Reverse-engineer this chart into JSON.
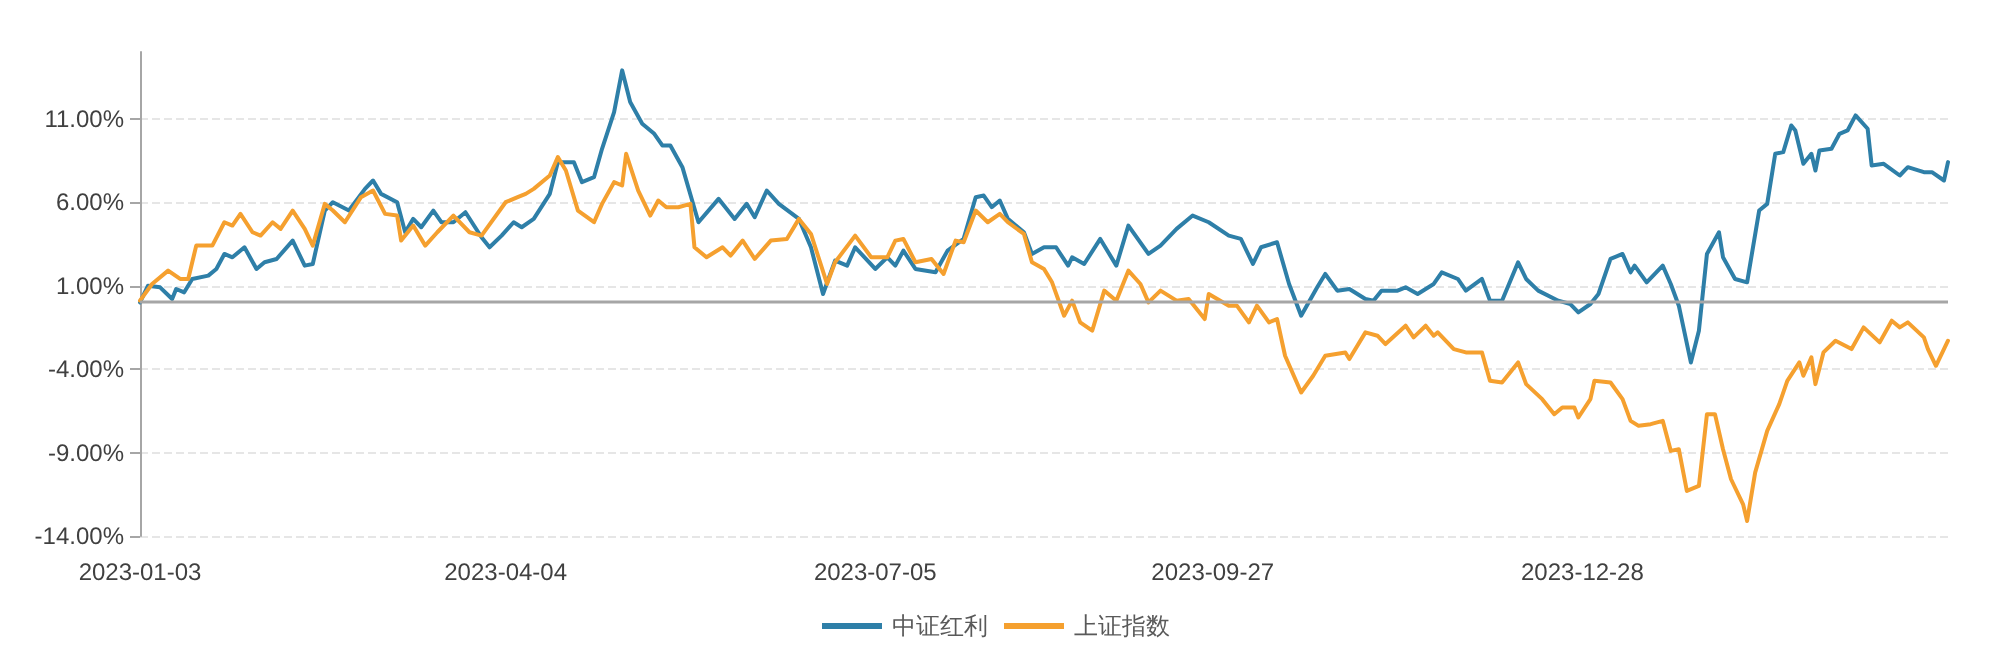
{
  "chart_data": {
    "type": "line",
    "legend": "bottom",
    "grid": "y",
    "marker": "none",
    "line_style": "solid",
    "xlim": [
      "2023-01-03",
      "2024-03-28"
    ],
    "xticks": [
      "2023-01-03",
      "2023-04-04",
      "2023-07-05",
      "2023-09-27",
      "2023-12-28"
    ],
    "ylim": [
      -14,
      15
    ],
    "yticks": [
      {
        "value": -14,
        "label": "-14.00%"
      },
      {
        "value": -9,
        "label": "-9.00%"
      },
      {
        "value": -4,
        "label": "-4.00%"
      },
      {
        "value": 1,
        "label": "1.00%"
      },
      {
        "value": 6,
        "label": "6.00%"
      },
      {
        "value": 11,
        "label": "11.00%"
      }
    ],
    "ref_lines": [
      {
        "axis": "y",
        "value": 0,
        "color": "#a6a6a6"
      }
    ],
    "series": [
      {
        "name": "中证红利",
        "color": "#2e7fa8",
        "x": [
          "2023-01-03",
          "2023-01-05",
          "2023-01-08",
          "2023-01-11",
          "2023-01-12",
          "2023-01-14",
          "2023-01-16",
          "2023-01-20",
          "2023-01-22",
          "2023-01-24",
          "2023-01-26",
          "2023-01-29",
          "2023-02-01",
          "2023-02-03",
          "2023-02-06",
          "2023-02-10",
          "2023-02-13",
          "2023-02-15",
          "2023-02-18",
          "2023-02-20",
          "2023-02-24",
          "2023-02-28",
          "2023-03-02",
          "2023-03-04",
          "2023-03-08",
          "2023-03-10",
          "2023-03-12",
          "2023-03-14",
          "2023-03-17",
          "2023-03-19",
          "2023-03-22",
          "2023-03-25",
          "2023-03-29",
          "2023-03-31",
          "2023-04-03",
          "2023-04-06",
          "2023-04-08",
          "2023-04-11",
          "2023-04-15",
          "2023-04-17",
          "2023-04-21",
          "2023-04-23",
          "2023-04-26",
          "2023-04-28",
          "2023-05-01",
          "2023-05-03",
          "2023-05-05",
          "2023-05-08",
          "2023-05-11",
          "2023-05-13",
          "2023-05-15",
          "2023-05-18",
          "2023-05-22",
          "2023-05-27",
          "2023-05-31",
          "2023-06-03",
          "2023-06-05",
          "2023-06-08",
          "2023-06-11",
          "2023-06-16",
          "2023-06-19",
          "2023-06-22",
          "2023-06-25",
          "2023-06-28",
          "2023-06-30",
          "2023-07-05",
          "2023-07-08",
          "2023-07-10",
          "2023-07-12",
          "2023-07-15",
          "2023-07-20",
          "2023-07-23",
          "2023-07-27",
          "2023-07-30",
          "2023-08-01",
          "2023-08-03",
          "2023-08-05",
          "2023-08-07",
          "2023-08-11",
          "2023-08-13",
          "2023-08-16",
          "2023-08-19",
          "2023-08-22",
          "2023-08-23",
          "2023-08-26",
          "2023-08-30",
          "2023-09-03",
          "2023-09-06",
          "2023-09-11",
          "2023-09-14",
          "2023-09-18",
          "2023-09-22",
          "2023-09-26",
          "2023-10-01",
          "2023-10-04",
          "2023-10-07",
          "2023-10-09",
          "2023-10-13",
          "2023-10-16",
          "2023-10-19",
          "2023-10-23",
          "2023-10-25",
          "2023-10-28",
          "2023-10-31",
          "2023-11-04",
          "2023-11-06",
          "2023-11-08",
          "2023-11-12",
          "2023-11-14",
          "2023-11-17",
          "2023-11-21",
          "2023-11-23",
          "2023-11-27",
          "2023-11-29",
          "2023-12-03",
          "2023-12-05",
          "2023-12-08",
          "2023-12-12",
          "2023-12-14",
          "2023-12-17",
          "2023-12-22",
          "2023-12-25",
          "2023-12-27",
          "2023-12-30",
          "2024-01-01",
          "2024-01-04",
          "2024-01-07",
          "2024-01-09",
          "2024-01-10",
          "2024-01-13",
          "2024-01-17",
          "2024-01-19",
          "2024-01-21",
          "2024-01-24",
          "2024-01-26",
          "2024-01-28",
          "2024-01-31",
          "2024-02-01",
          "2024-02-04",
          "2024-02-07",
          "2024-02-10",
          "2024-02-12",
          "2024-02-14",
          "2024-02-16",
          "2024-02-18",
          "2024-02-19",
          "2024-02-21",
          "2024-02-23",
          "2024-02-24",
          "2024-02-25",
          "2024-02-28",
          "2024-03-01",
          "2024-03-03",
          "2024-03-05",
          "2024-03-08",
          "2024-03-09",
          "2024-03-12",
          "2024-03-16",
          "2024-03-18",
          "2024-03-22",
          "2024-03-24",
          "2024-03-27",
          "2024-03-28"
        ],
        "values": [
          0,
          1.0,
          0.9,
          0.2,
          0.8,
          0.6,
          1.4,
          1.6,
          2.0,
          2.9,
          2.7,
          3.3,
          2.0,
          2.4,
          2.6,
          3.7,
          2.2,
          2.3,
          5.5,
          6.0,
          5.5,
          6.8,
          7.3,
          6.5,
          6.0,
          4.2,
          5.0,
          4.5,
          5.5,
          4.8,
          4.8,
          5.4,
          3.9,
          3.3,
          4.0,
          4.8,
          4.5,
          5.0,
          6.5,
          8.4,
          8.4,
          7.2,
          7.5,
          9.2,
          11.4,
          13.9,
          12.0,
          10.7,
          10.1,
          9.4,
          9.4,
          8.1,
          4.8,
          6.2,
          5.0,
          5.9,
          5.1,
          6.7,
          5.9,
          5.0,
          3.3,
          0.5,
          2.5,
          2.2,
          3.3,
          2.0,
          2.7,
          2.2,
          3.1,
          2.0,
          1.8,
          3.1,
          3.8,
          6.3,
          6.4,
          5.7,
          6.1,
          5.0,
          4.2,
          2.9,
          3.3,
          3.3,
          2.2,
          2.7,
          2.3,
          3.8,
          2.2,
          4.6,
          2.9,
          3.4,
          4.4,
          5.2,
          4.8,
          4.0,
          3.8,
          2.3,
          3.3,
          3.6,
          1.1,
          -0.8,
          0.9,
          1.7,
          0.7,
          0.8,
          0.2,
          0.1,
          0.7,
          0.7,
          0.9,
          0.5,
          1.1,
          1.8,
          1.4,
          0.7,
          1.4,
          0.1,
          0.1,
          2.4,
          1.4,
          0.7,
          0.1,
          -0.1,
          -0.6,
          -0.1,
          0.5,
          2.6,
          2.9,
          1.8,
          2.2,
          1.2,
          2.2,
          1.1,
          -0.2,
          -3.6,
          -1.7,
          2.9,
          4.2,
          2.7,
          1.4,
          1.2,
          5.5,
          5.9,
          8.9,
          9.0,
          10.6,
          10.3,
          8.3,
          8.9,
          7.9,
          9.1,
          9.2,
          10.1,
          10.3,
          11.2,
          10.4,
          8.2,
          8.3,
          7.6,
          8.1,
          7.8,
          7.8,
          7.3,
          8.4
        ]
      },
      {
        "name": "上证指数",
        "color": "#f5a02f",
        "x": [
          "2023-01-03",
          "2023-01-06",
          "2023-01-10",
          "2023-01-13",
          "2023-01-15",
          "2023-01-17",
          "2023-01-21",
          "2023-01-24",
          "2023-01-26",
          "2023-01-28",
          "2023-01-31",
          "2023-02-02",
          "2023-02-05",
          "2023-02-07",
          "2023-02-10",
          "2023-02-13",
          "2023-02-15",
          "2023-02-18",
          "2023-02-20",
          "2023-02-23",
          "2023-02-27",
          "2023-03-02",
          "2023-03-05",
          "2023-03-08",
          "2023-03-09",
          "2023-03-12",
          "2023-03-15",
          "2023-03-18",
          "2023-03-22",
          "2023-03-26",
          "2023-03-29",
          "2023-04-04",
          "2023-04-07",
          "2023-04-09",
          "2023-04-11",
          "2023-04-15",
          "2023-04-17",
          "2023-04-19",
          "2023-04-22",
          "2023-04-26",
          "2023-04-28",
          "2023-05-01",
          "2023-05-03",
          "2023-05-04",
          "2023-05-07",
          "2023-05-10",
          "2023-05-12",
          "2023-05-14",
          "2023-05-17",
          "2023-05-20",
          "2023-05-21",
          "2023-05-24",
          "2023-05-28",
          "2023-05-30",
          "2023-06-02",
          "2023-06-05",
          "2023-06-09",
          "2023-06-13",
          "2023-06-16",
          "2023-06-19",
          "2023-06-23",
          "2023-06-25",
          "2023-06-30",
          "2023-07-04",
          "2023-07-08",
          "2023-07-10",
          "2023-07-12",
          "2023-07-15",
          "2023-07-19",
          "2023-07-22",
          "2023-07-25",
          "2023-07-27",
          "2023-07-30",
          "2023-08-02",
          "2023-08-05",
          "2023-08-07",
          "2023-08-11",
          "2023-08-13",
          "2023-08-16",
          "2023-08-18",
          "2023-08-21",
          "2023-08-23",
          "2023-08-25",
          "2023-08-28",
          "2023-08-31",
          "2023-09-03",
          "2023-09-06",
          "2023-09-09",
          "2023-09-11",
          "2023-09-14",
          "2023-09-18",
          "2023-09-21",
          "2023-09-25",
          "2023-09-26",
          "2023-10-01",
          "2023-10-03",
          "2023-10-06",
          "2023-10-08",
          "2023-10-11",
          "2023-10-13",
          "2023-10-15",
          "2023-10-19",
          "2023-10-22",
          "2023-10-25",
          "2023-10-30",
          "2023-10-31",
          "2023-11-04",
          "2023-11-07",
          "2023-11-09",
          "2023-11-14",
          "2023-11-16",
          "2023-11-19",
          "2023-11-21",
          "2023-11-22",
          "2023-11-26",
          "2023-11-29",
          "2023-12-03",
          "2023-12-05",
          "2023-12-08",
          "2023-12-12",
          "2023-12-14",
          "2023-12-18",
          "2023-12-21",
          "2023-12-23",
          "2023-12-26",
          "2023-12-27",
          "2023-12-30",
          "2023-12-31",
          "2024-01-04",
          "2024-01-07",
          "2024-01-09",
          "2024-01-11",
          "2024-01-14",
          "2024-01-17",
          "2024-01-19",
          "2024-01-21",
          "2024-01-23",
          "2024-01-26",
          "2024-01-28",
          "2024-01-30",
          "2024-02-01",
          "2024-02-03",
          "2024-02-06",
          "2024-02-07",
          "2024-02-09",
          "2024-02-12",
          "2024-02-15",
          "2024-02-17",
          "2024-02-20",
          "2024-02-21",
          "2024-02-23",
          "2024-02-24",
          "2024-02-26",
          "2024-02-29",
          "2024-03-04",
          "2024-03-07",
          "2024-03-11",
          "2024-03-14",
          "2024-03-16",
          "2024-03-18",
          "2024-03-22",
          "2024-03-23",
          "2024-03-25",
          "2024-03-28"
        ],
        "values": [
          0.1,
          1.1,
          1.9,
          1.4,
          1.4,
          3.4,
          3.4,
          4.8,
          4.6,
          5.3,
          4.2,
          4.0,
          4.8,
          4.4,
          5.5,
          4.4,
          3.4,
          5.9,
          5.5,
          4.8,
          6.3,
          6.7,
          5.3,
          5.2,
          3.7,
          4.6,
          3.4,
          4.2,
          5.2,
          4.2,
          4.0,
          6.0,
          6.3,
          6.5,
          6.8,
          7.6,
          8.7,
          7.9,
          5.5,
          4.8,
          5.9,
          7.2,
          7.0,
          8.9,
          6.7,
          5.2,
          6.1,
          5.7,
          5.7,
          5.9,
          3.3,
          2.7,
          3.3,
          2.8,
          3.7,
          2.6,
          3.7,
          3.8,
          5.0,
          4.1,
          1.1,
          2.4,
          4.0,
          2.7,
          2.7,
          3.7,
          3.8,
          2.4,
          2.6,
          1.7,
          3.7,
          3.6,
          5.5,
          4.8,
          5.3,
          4.8,
          4.1,
          2.4,
          2.0,
          1.2,
          -0.8,
          0.1,
          -1.2,
          -1.7,
          0.7,
          0.1,
          1.9,
          1.1,
          0,
          0.7,
          0.1,
          0.2,
          -1.0,
          0.5,
          -0.2,
          -0.2,
          -1.2,
          -0.2,
          -1.2,
          -1.0,
          -3.2,
          -5.4,
          -4.4,
          -3.2,
          -3.0,
          -3.4,
          -1.8,
          -2.0,
          -2.5,
          -1.4,
          -2.1,
          -1.4,
          -2.0,
          -1.8,
          -2.8,
          -3.0,
          -3.0,
          -4.7,
          -4.8,
          -3.6,
          -4.9,
          -5.8,
          -6.7,
          -6.3,
          -6.3,
          -6.9,
          -5.8,
          -4.7,
          -4.8,
          -5.8,
          -7.1,
          -7.4,
          -7.3,
          -7.1,
          -8.9,
          -8.8,
          -11.3,
          -11.0,
          -6.7,
          -6.7,
          -8.8,
          -10.6,
          -12.1,
          -13.1,
          -10.2,
          -7.7,
          -6.1,
          -4.7,
          -3.6,
          -4.4,
          -3.3,
          -4.9,
          -3.0,
          -2.3,
          -2.8,
          -1.5,
          -2.4,
          -1.1,
          -1.5,
          -1.2,
          -2.1,
          -2.8,
          -3.8,
          -2.3
        ]
      }
    ]
  }
}
